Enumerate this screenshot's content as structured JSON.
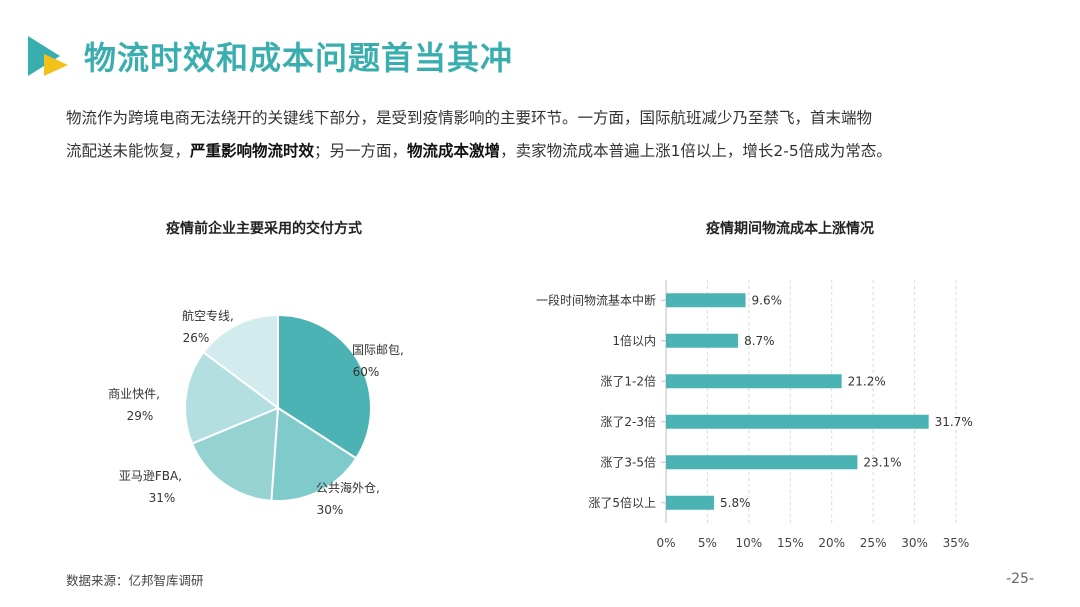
{
  "header": {
    "title": "物流时效和成本问题首当其冲",
    "logo_icon": "play-triangle-logo-icon",
    "colors": {
      "teal": "#3aaeae",
      "yellow": "#f2c21b"
    }
  },
  "intro": {
    "seg1": "物流作为跨境电商无法绕开的关键线下部分，是受到疫情影响的主要环节。一方面，国际航班减少乃至禁飞，首末端物",
    "seg2": "流配送未能恢复，",
    "bold1": "严重影响物流时效",
    "seg3": "；另一方面，",
    "bold2": "物流成本激增",
    "seg4": "，卖家物流成本普遍上涨1倍以上，增长2-5倍成为常态。"
  },
  "chart_data": [
    {
      "type": "pie",
      "title": "疫情前企业主要采用的交付方式",
      "categories": [
        "国际邮包,",
        "公共海外仓,",
        "亚马逊FBA,",
        "商业快件,",
        "航空专线,"
      ],
      "values": [
        60,
        30,
        31,
        29,
        26
      ],
      "value_labels": [
        "60%",
        "30%",
        "31%",
        "29%",
        "26%"
      ],
      "colors": [
        "#4bb3b3",
        "#7fcaca",
        "#96d2d2",
        "#b3dfe0",
        "#d2ecee"
      ]
    },
    {
      "type": "bar",
      "orientation": "horizontal",
      "title": "疫情期间物流成本上涨情况",
      "categories": [
        "一段时间物流基本中断",
        "1倍以内",
        "涨了1-2倍",
        "涨了2-3倍",
        "涨了3-5倍",
        "涨了5倍以上"
      ],
      "values": [
        9.6,
        8.7,
        21.2,
        31.7,
        23.1,
        5.8
      ],
      "value_labels": [
        "9.6%",
        "8.7%",
        "21.2%",
        "31.7%",
        "23.1%",
        "5.8%"
      ],
      "xlim": [
        0,
        35
      ],
      "xticks": [
        "0%",
        "5%",
        "10%",
        "15%",
        "20%",
        "25%",
        "30%",
        "35%"
      ],
      "grid": "vertical dashed",
      "color": "#4bb3b3"
    }
  ],
  "footer": {
    "source": "数据来源：亿邦智库调研",
    "page": "-25-"
  }
}
